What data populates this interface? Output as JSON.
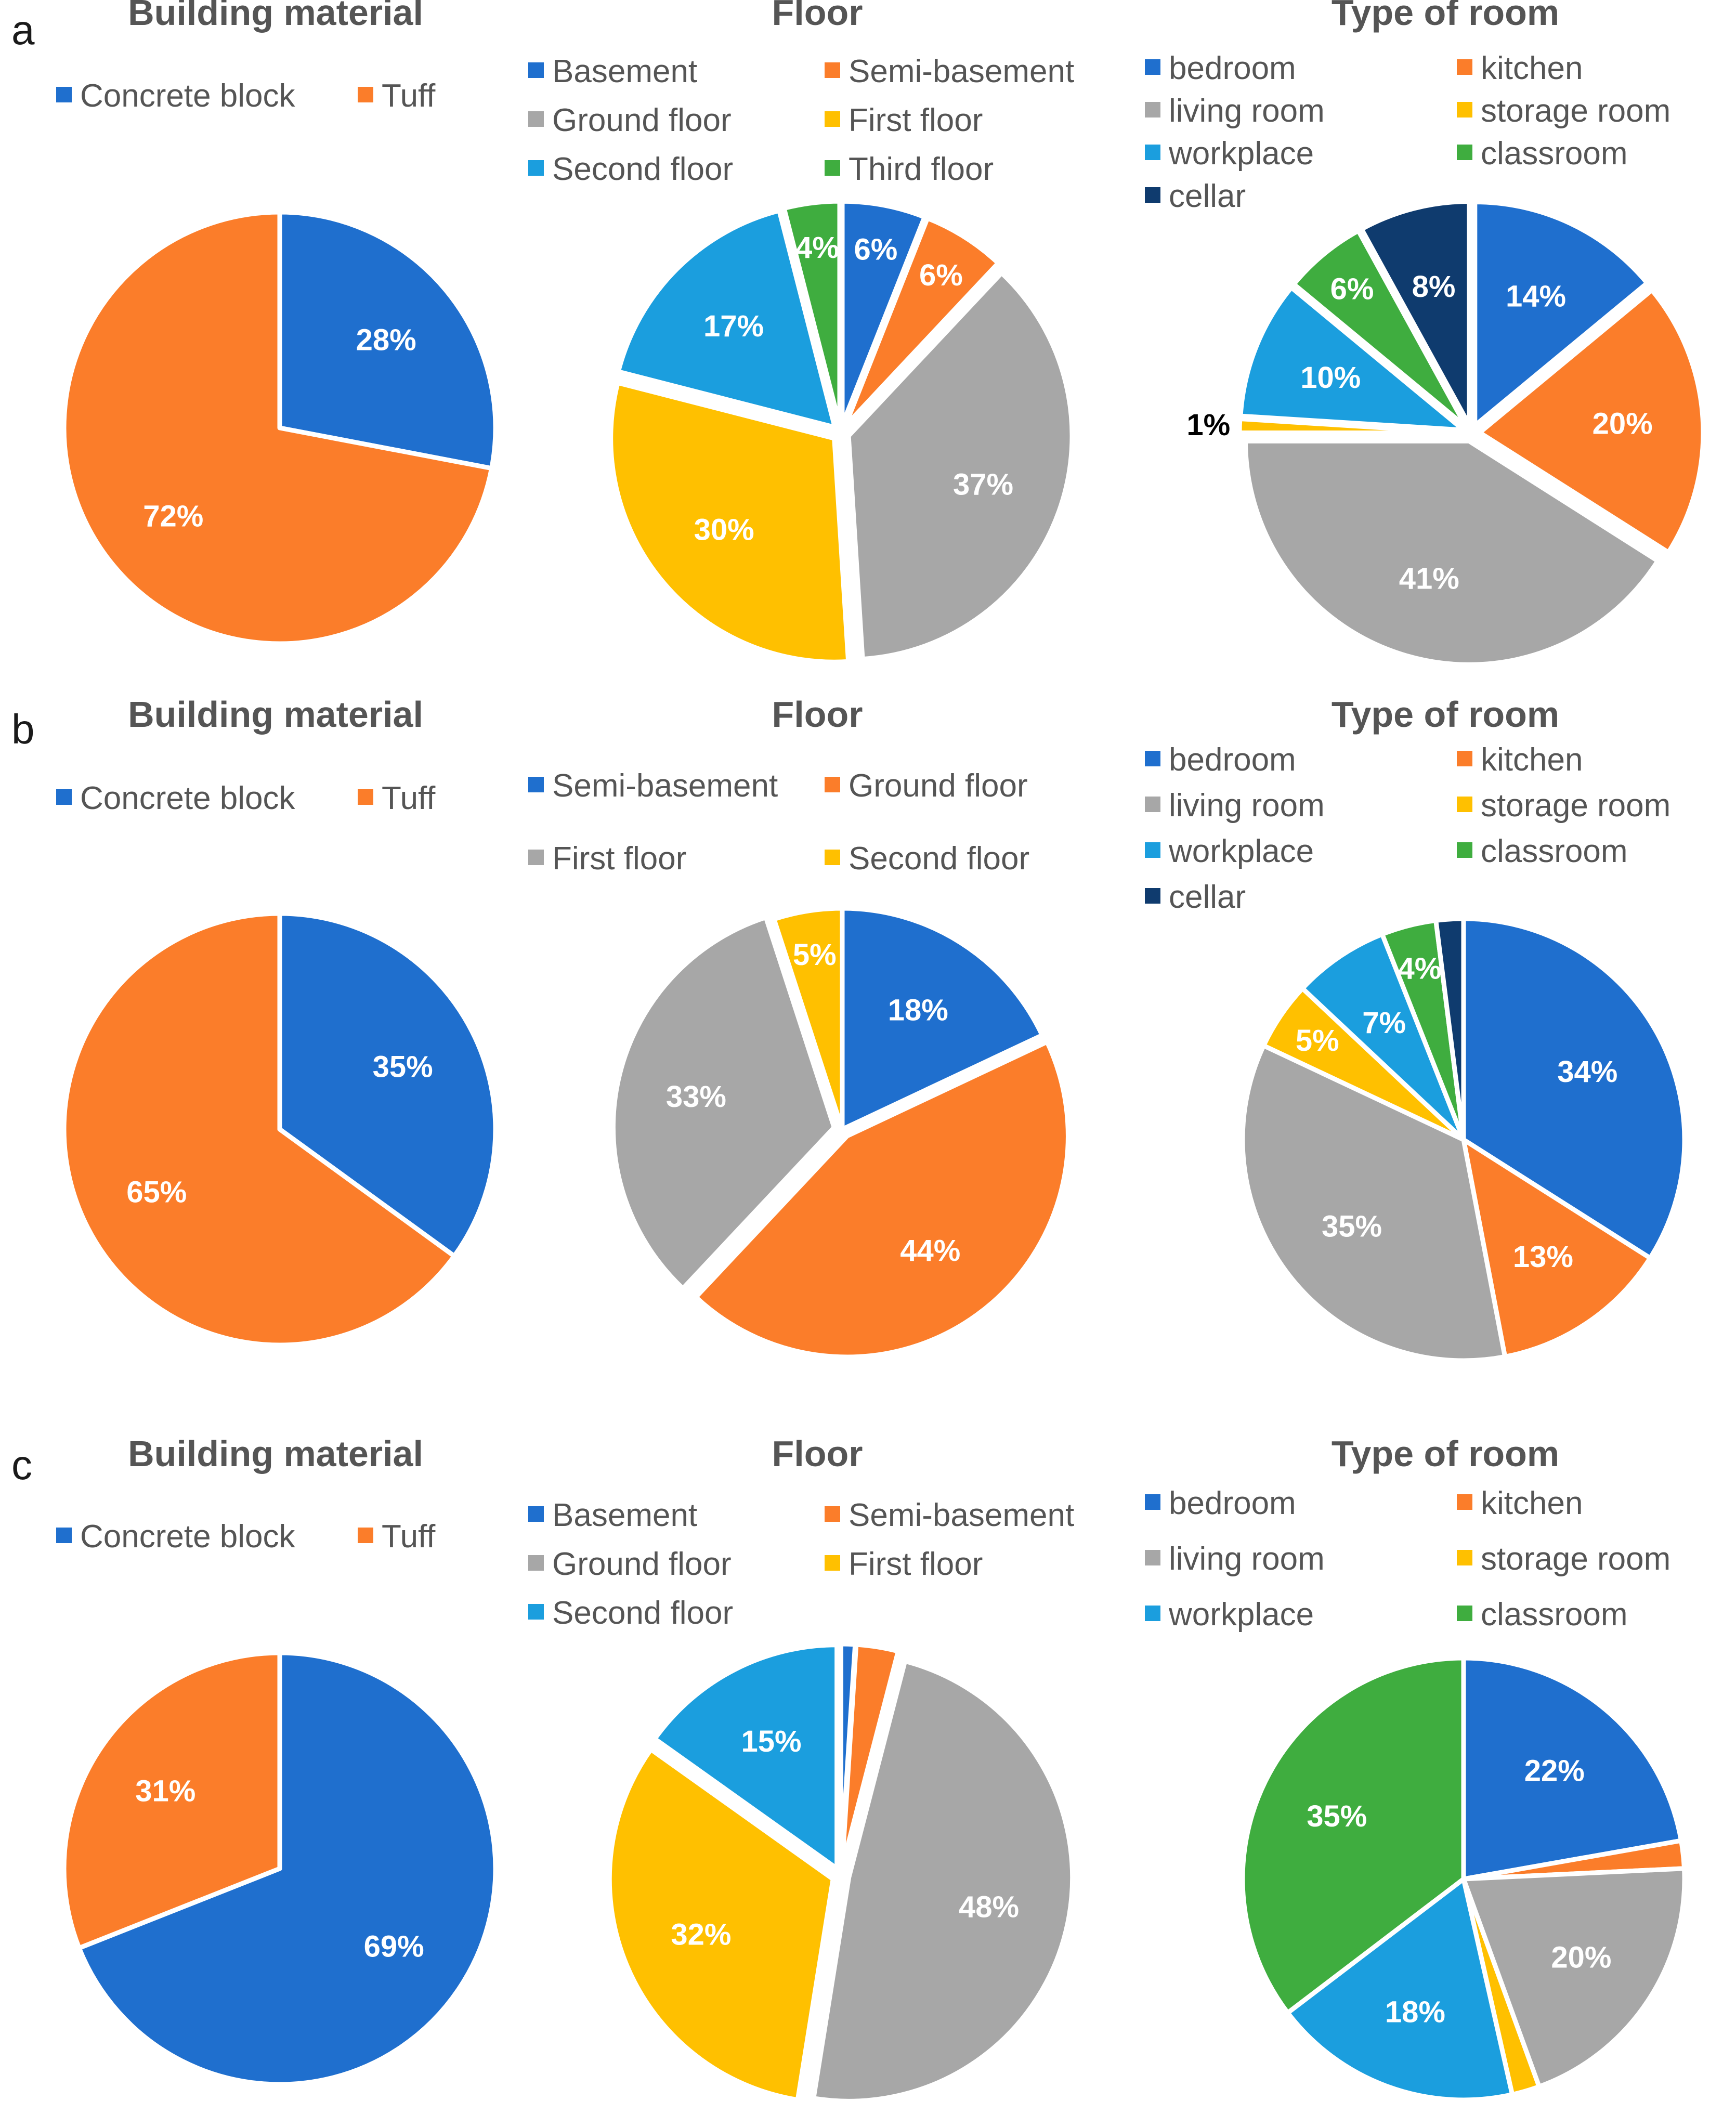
{
  "panels": [
    {
      "letter": "a",
      "charts": [
        {
          "title": "Building material",
          "legend": [
            "Concrete block",
            "Tuff"
          ],
          "chart_data": {
            "type": "pie",
            "title": "Building material",
            "labels": [
              "Concrete block",
              "Tuff"
            ],
            "values": [
              28,
              72
            ],
            "value_labels": [
              "28%",
              "72%"
            ],
            "colors": [
              "#1f6fce",
              "#fb7d2a"
            ],
            "explode": [
              0,
              0
            ]
          }
        },
        {
          "title": "Floor",
          "legend": [
            "Basement",
            "Semi-basement",
            "Ground floor",
            "First floor",
            "Second floor",
            "Third floor"
          ],
          "chart_data": {
            "type": "pie",
            "title": "Floor",
            "labels": [
              "Basement",
              "Semi-basement",
              "Ground floor",
              "First floor",
              "Second floor",
              "Third floor"
            ],
            "values": [
              6,
              6,
              37,
              30,
              17,
              4
            ],
            "value_labels": [
              "6%",
              "6%",
              "37%",
              "30%",
              "17%",
              "4%"
            ],
            "colors": [
              "#1f6fce",
              "#fb7d2a",
              "#a7a7a7",
              "#ffc000",
              "#1b9ede",
              "#3fad3f"
            ],
            "explode": [
              1,
              1,
              1,
              1,
              1,
              1
            ]
          }
        },
        {
          "title": "Type of room",
          "legend": [
            "bedroom",
            "kitchen",
            "living room",
            "storage room",
            "workplace",
            "classroom",
            "cellar"
          ],
          "chart_data": {
            "type": "pie",
            "title": "Type of room",
            "labels": [
              "bedroom",
              "kitchen",
              "living room",
              "storage room",
              "workplace",
              "classroom",
              "cellar"
            ],
            "values": [
              14,
              20,
              41,
              1,
              10,
              6,
              8
            ],
            "value_labels": [
              "14%",
              "20%",
              "41%",
              "1%",
              "10%",
              "6%",
              "8%"
            ],
            "colors": [
              "#1f6fce",
              "#fb7d2a",
              "#a7a7a7",
              "#ffc000",
              "#1b9ede",
              "#3fad3f",
              "#0f3b6e"
            ],
            "explode": [
              1,
              1,
              1,
              1,
              1,
              1,
              1
            ]
          }
        }
      ]
    },
    {
      "letter": "b",
      "charts": [
        {
          "title": "Building material",
          "legend": [
            "Concrete block",
            "Tuff"
          ],
          "chart_data": {
            "type": "pie",
            "title": "Building material",
            "labels": [
              "Concrete block",
              "Tuff"
            ],
            "values": [
              35,
              65
            ],
            "value_labels": [
              "35%",
              "65%"
            ],
            "colors": [
              "#1f6fce",
              "#fb7d2a"
            ],
            "explode": [
              0,
              0
            ]
          }
        },
        {
          "title": "Floor",
          "legend": [
            "Semi-basement",
            "Ground floor",
            "First floor",
            "Second floor"
          ],
          "chart_data": {
            "type": "pie",
            "title": "Floor",
            "labels": [
              "Semi-basement",
              "Ground floor",
              "First floor",
              "Second floor"
            ],
            "values": [
              18,
              44,
              33,
              5
            ],
            "value_labels": [
              "18%",
              "44%",
              "33%",
              "5%"
            ],
            "colors": [
              "#1f6fce",
              "#fb7d2a",
              "#a7a7a7",
              "#ffc000"
            ],
            "explode": [
              0,
              1,
              1,
              0
            ]
          }
        },
        {
          "title": "Type of room",
          "legend": [
            "bedroom",
            "kitchen",
            "living room",
            "storage room",
            "workplace",
            "classroom",
            "cellar"
          ],
          "chart_data": {
            "type": "pie",
            "title": "Type of room",
            "labels": [
              "bedroom",
              "kitchen",
              "living room",
              "storage room",
              "workplace",
              "classroom",
              "cellar"
            ],
            "values": [
              34,
              13,
              35,
              5,
              7,
              4,
              2
            ],
            "value_labels": [
              "34%",
              "13%",
              "35%",
              "5%",
              "7%",
              "4%",
              ""
            ],
            "colors": [
              "#1f6fce",
              "#fb7d2a",
              "#a7a7a7",
              "#ffc000",
              "#1b9ede",
              "#3fad3f",
              "#0f3b6e"
            ],
            "explode": [
              0,
              0,
              0,
              0,
              0,
              0,
              0
            ]
          }
        }
      ]
    },
    {
      "letter": "c",
      "charts": [
        {
          "title": "Building material",
          "legend": [
            "Concrete block",
            "Tuff"
          ],
          "chart_data": {
            "type": "pie",
            "title": "Building material",
            "labels": [
              "Concrete block",
              "Tuff"
            ],
            "values": [
              69,
              31
            ],
            "value_labels": [
              "69%",
              "31%"
            ],
            "colors": [
              "#1f6fce",
              "#fb7d2a"
            ],
            "explode": [
              0,
              0
            ]
          }
        },
        {
          "title": "Floor",
          "legend": [
            "Basement",
            "Semi-basement",
            "Ground floor",
            "First floor",
            "Second floor"
          ],
          "chart_data": {
            "type": "pie",
            "title": "Floor",
            "labels": [
              "Basement",
              "Semi-basement",
              "Ground floor",
              "First floor",
              "Second floor"
            ],
            "values": [
              1,
              3,
              48,
              32,
              15
            ],
            "value_labels": [
              "",
              "",
              "48%",
              "32%",
              "15%"
            ],
            "colors": [
              "#1f6fce",
              "#fb7d2a",
              "#a7a7a7",
              "#ffc000",
              "#1b9ede"
            ],
            "explode": [
              1,
              1,
              1,
              1,
              1
            ]
          }
        },
        {
          "title": "Type of room",
          "legend": [
            "bedroom",
            "kitchen",
            "living room",
            "storage room",
            "workplace",
            "classroom"
          ],
          "chart_data": {
            "type": "pie",
            "title": "Type of room",
            "labels": [
              "bedroom",
              "kitchen",
              "living room",
              "storage room",
              "workplace",
              "classroom"
            ],
            "values": [
              22,
              2,
              20,
              2,
              18,
              35
            ],
            "value_labels": [
              "22%",
              "",
              "20%",
              "",
              "18%",
              "35%"
            ],
            "colors": [
              "#1f6fce",
              "#fb7d2a",
              "#a7a7a7",
              "#ffc000",
              "#1b9ede",
              "#3fad3f"
            ],
            "explode": [
              0,
              0,
              0,
              0,
              0,
              0
            ]
          }
        }
      ]
    }
  ]
}
